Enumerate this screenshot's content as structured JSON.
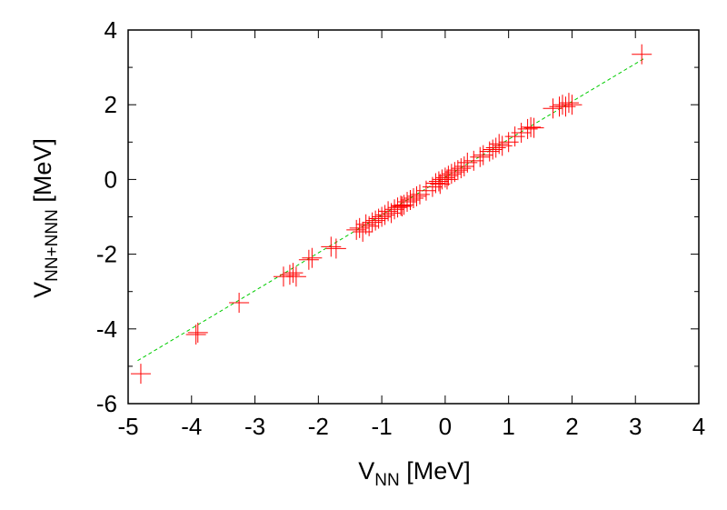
{
  "chart_data": {
    "type": "scatter",
    "xlabel": "V_NN [MeV]",
    "xlabel_parts": {
      "main": "V",
      "sub": "NN",
      "rest": " [MeV]"
    },
    "ylabel": "V_NN+NNN [MeV]",
    "ylabel_parts": {
      "main": "V",
      "sub": "NN+NNN",
      "rest": " [MeV]"
    },
    "xlim": [
      -5,
      4
    ],
    "ylim": [
      -6,
      4
    ],
    "x_ticks": [
      -5,
      -4,
      -3,
      -2,
      -1,
      0,
      1,
      2,
      3,
      4
    ],
    "y_ticks": [
      -6,
      -4,
      -2,
      0,
      2,
      4
    ],
    "x_tick_labels": [
      "-5",
      "-4",
      "-3",
      "-2",
      "-1",
      "0",
      "1",
      "2",
      "3",
      "4"
    ],
    "y_tick_labels": [
      "-6",
      "-4",
      "-2",
      "0",
      "2",
      "4"
    ],
    "grid": false,
    "legend": "none",
    "colors": {
      "points": "#ff0000",
      "fit_line": "#00cc00",
      "axes": "#000000"
    },
    "fit_line": {
      "x": [
        -4.85,
        3.15
      ],
      "y": [
        -4.85,
        3.25
      ]
    },
    "series": [
      {
        "marker": "plus",
        "x": [
          -4.8,
          -3.9,
          -3.93,
          -3.25,
          -2.55,
          -2.45,
          -2.4,
          -2.35,
          -2.15,
          -2.1,
          -1.8,
          -1.72,
          -1.4,
          -1.35,
          -1.3,
          -1.25,
          -1.2,
          -1.15,
          -1.1,
          -1.05,
          -1.0,
          -0.95,
          -0.9,
          -0.85,
          -0.8,
          -0.75,
          -0.7,
          -0.68,
          -0.65,
          -0.6,
          -0.55,
          -0.5,
          -0.45,
          -0.4,
          -0.3,
          -0.2,
          -0.15,
          -0.1,
          -0.08,
          -0.05,
          0.0,
          0.03,
          0.05,
          0.1,
          0.15,
          0.2,
          0.25,
          0.3,
          0.35,
          0.45,
          0.55,
          0.6,
          0.7,
          0.75,
          0.8,
          0.85,
          0.9,
          1.0,
          1.1,
          1.2,
          1.3,
          1.35,
          1.4,
          1.7,
          1.8,
          1.85,
          1.9,
          1.95,
          2.0,
          3.1
        ],
        "y": [
          -5.2,
          -4.1,
          -4.15,
          -3.3,
          -2.6,
          -2.55,
          -2.5,
          -2.6,
          -2.15,
          -2.1,
          -1.8,
          -1.85,
          -1.35,
          -1.3,
          -1.4,
          -1.2,
          -1.25,
          -1.15,
          -1.1,
          -1.05,
          -1.0,
          -0.95,
          -0.85,
          -0.9,
          -0.8,
          -0.75,
          -0.7,
          -0.72,
          -0.68,
          -0.6,
          -0.55,
          -0.5,
          -0.45,
          -0.4,
          -0.3,
          -0.2,
          -0.1,
          -0.05,
          -0.12,
          0.0,
          0.05,
          0.0,
          0.1,
          0.15,
          0.2,
          0.25,
          0.3,
          0.35,
          0.45,
          0.5,
          0.6,
          0.65,
          0.75,
          0.8,
          0.85,
          0.95,
          0.9,
          1.0,
          1.15,
          1.25,
          1.35,
          1.4,
          1.38,
          1.9,
          1.95,
          2.0,
          1.95,
          2.05,
          2.0,
          3.35
        ]
      }
    ]
  }
}
